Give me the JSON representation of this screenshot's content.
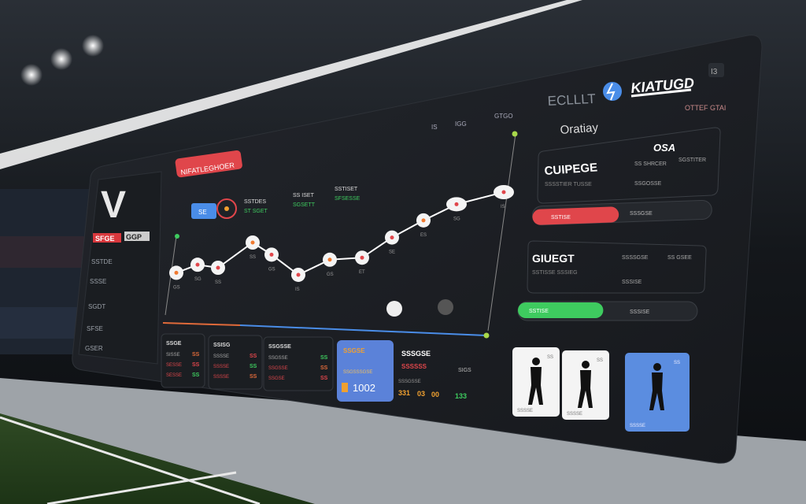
{
  "colors": {
    "panel": "#1c1f24",
    "accent_red": "#e0464b",
    "accent_blue": "#5b82d9",
    "accent_green": "#3ecb5f",
    "accent_orange": "#f0a030"
  },
  "left_panel": {
    "logo_text": "V",
    "badge_red": "SFGE",
    "badge_white": "GGP",
    "rows": [
      "SSTDE",
      "SSSE",
      "SGDT",
      "SFSE",
      "GSER"
    ]
  },
  "header": {
    "tag": "NIFATLEGHOER",
    "brand_left": "ECLLLT",
    "brand": "KIATUGD",
    "top_icons": "I3",
    "sub": "OTTEF GTAI",
    "nav": [
      "IS",
      "IGG",
      "GTGO"
    ]
  },
  "stats_row": {
    "button": "SE",
    "items": [
      {
        "label": "SSTDES",
        "value": "ST SGET"
      },
      {
        "label": "SS ISET",
        "value": "SGSETT"
      },
      {
        "label": "SSTISET",
        "value": "SFSESSE"
      }
    ]
  },
  "chart_data": {
    "type": "line",
    "values": [
      20,
      28,
      25,
      50,
      38,
      18,
      33,
      35,
      55,
      72,
      88,
      100
    ],
    "ylim": [
      0,
      100
    ],
    "grid": false,
    "series_color": "#ffffff",
    "point_labels": [
      "GS",
      "SG",
      "SS",
      "SS",
      "GS",
      "IS",
      "GS",
      "ET",
      "SE",
      "ES",
      "SG",
      "IS"
    ]
  },
  "right_panel": {
    "title": "Oratiay",
    "card1": {
      "title": "CUIPEGE",
      "code": "OSA",
      "sub": "SSSSTIER TUSSE",
      "lines": [
        "SS SHRCER",
        "SSGOSSE",
        "SGSTITER"
      ]
    },
    "bar1": {
      "label": "SSTISE",
      "right": "SSSGSE",
      "progress": 42
    },
    "card2": {
      "title": "GIUEGT",
      "sub": "SSTISSE SSSIEG",
      "lines": [
        "SSSSGSE",
        "SS GSEE",
        "SSSISE"
      ]
    },
    "bar2": {
      "label": "SSTISE",
      "right": "SSSISE",
      "progress": 30
    }
  },
  "bottom": {
    "tables": [
      {
        "title": "SSGE",
        "rows": [
          [
            "SISSE",
            "SS"
          ],
          [
            "SESSE",
            "SS"
          ],
          [
            "SESSE",
            "SS"
          ]
        ]
      },
      {
        "title": "SSISG",
        "rows": [
          [
            "SSSSE",
            "SS"
          ],
          [
            "SSSSE",
            "SS"
          ],
          [
            "SSSSE",
            "SS"
          ]
        ]
      },
      {
        "title": "SSGSSE",
        "rows": [
          [
            "SSGSSE",
            "SS"
          ],
          [
            "SSGSSE",
            "SS"
          ],
          [
            "SSGSE",
            "SS"
          ]
        ]
      }
    ],
    "highlight": {
      "label": "SSGSE",
      "sub": "SSGSSSGSE",
      "value": "1002"
    },
    "summary": {
      "title": "SSSGSE",
      "scores": "SSSSSS",
      "side": "SIGS",
      "sub": "SSSGSSE",
      "nums": [
        "331",
        "03",
        "00",
        "133"
      ]
    }
  },
  "players": [
    {
      "label": "SS",
      "name": "SSSSE"
    },
    {
      "label": "SS",
      "name": "SSSSE"
    },
    {
      "label": "SS",
      "name": "SSSSE"
    }
  ]
}
